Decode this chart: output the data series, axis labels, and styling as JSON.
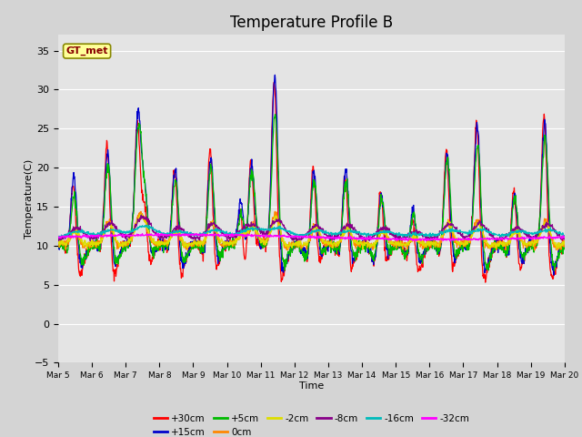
{
  "title": "Temperature Profile B",
  "xlabel": "Time",
  "ylabel": "Temperature(C)",
  "ylim": [
    -5,
    37
  ],
  "yticks": [
    -5,
    0,
    5,
    10,
    15,
    20,
    25,
    30,
    35
  ],
  "x_labels": [
    "Mar 5",
    "Mar 6",
    "Mar 7",
    "Mar 8",
    "Mar 9",
    "Mar 10",
    "Mar 11",
    "Mar 12",
    "Mar 13",
    "Mar 14",
    "Mar 15",
    "Mar 16",
    "Mar 17",
    "Mar 18",
    "Mar 19",
    "Mar 20"
  ],
  "series_labels": [
    "+30cm",
    "+15cm",
    "+5cm",
    "0cm",
    "-2cm",
    "-8cm",
    "-16cm",
    "-32cm"
  ],
  "series_colors": [
    "#ff0000",
    "#0000cc",
    "#00bb00",
    "#ff8800",
    "#dddd00",
    "#880088",
    "#00bbbb",
    "#ff00ff"
  ],
  "background_color": "#d4d4d4",
  "plot_bg_color": "#e4e4e4",
  "annotation_text": "GT_met",
  "annotation_bg": "#ffff99",
  "annotation_border": "#888800",
  "annotation_text_color": "#880000",
  "days": 15,
  "n_points": 1440,
  "title_fontsize": 12
}
